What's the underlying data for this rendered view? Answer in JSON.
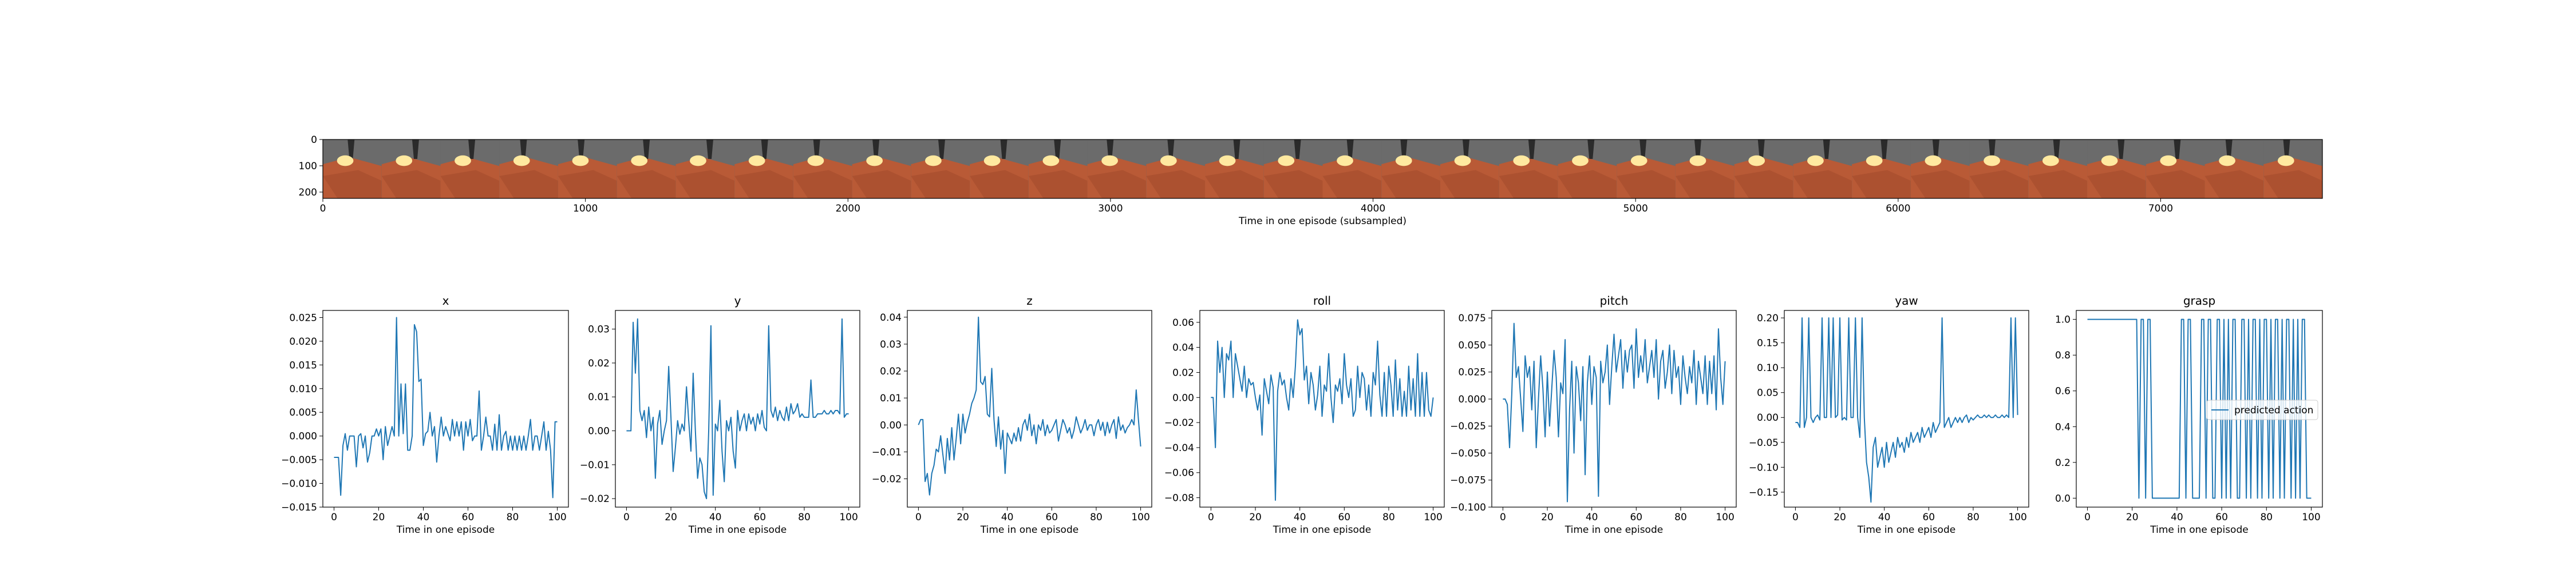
{
  "filmstrip": {
    "xlabel": "Time in one episode (subsampled)",
    "x_ticks": [
      "0",
      "1000",
      "2000",
      "3000",
      "4000",
      "5000",
      "6000",
      "7000"
    ],
    "x_tick_values": [
      0,
      1000,
      2000,
      3000,
      4000,
      5000,
      6000,
      7000
    ],
    "xlim": [
      0,
      7616
    ],
    "y_ticks": [
      "0",
      "100",
      "200"
    ],
    "y_tick_values": [
      0,
      100,
      200
    ],
    "ylim": [
      224,
      0
    ],
    "frame_count": 34,
    "colors": {
      "floor": "#b95a36",
      "wall": "#6b6b6b",
      "light": "#ffe9a0",
      "arm": "#2b2b2b"
    }
  },
  "chart_data": [
    {
      "type": "line",
      "title": "x",
      "xlabel": "Time in one episode",
      "xlim": [
        -5,
        105
      ],
      "ylim": [
        -0.015,
        0.0265
      ],
      "x_ticks": [
        0,
        20,
        40,
        60,
        80,
        100
      ],
      "y_ticks": [
        -0.015,
        -0.01,
        -0.005,
        0.0,
        0.005,
        0.01,
        0.015,
        0.02,
        0.025
      ],
      "y_tick_labels": [
        "−0.015",
        "−0.010",
        "−0.005",
        "0.000",
        "0.005",
        "0.010",
        "0.015",
        "0.020",
        "0.025"
      ],
      "series": [
        {
          "color": "#1f77b4",
          "values": [
            -0.0045,
            -0.0045,
            -0.0045,
            -0.0125,
            -0.002,
            0.0005,
            -0.003,
            0.0,
            0.0,
            0.0,
            -0.0065,
            0.0,
            0.0005,
            -0.0025,
            0.0,
            -0.0055,
            -0.0035,
            0.0,
            0.0,
            0.0015,
            0.0,
            0.0015,
            -0.005,
            0.002,
            -0.002,
            0.0,
            0.002,
            0.0,
            0.025,
            0.0,
            0.011,
            0.0005,
            0.011,
            -0.003,
            -0.003,
            0.0,
            0.0235,
            0.022,
            0.0115,
            0.012,
            -0.002,
            0.0005,
            0.001,
            0.005,
            0.0,
            0.002,
            -0.0055,
            0.0,
            0.004,
            0.0,
            0.002,
            0.0005,
            -0.001,
            0.0035,
            0.0,
            0.003,
            0.0,
            0.003,
            -0.003,
            0.003,
            0.0,
            0.0035,
            -0.001,
            0.0,
            0.0,
            0.0095,
            -0.003,
            0.0,
            0.004,
            0.0,
            0.0,
            -0.003,
            0.0025,
            -0.003,
            0.0045,
            -0.003,
            0.0,
            0.001,
            -0.003,
            0.0,
            -0.003,
            0.0,
            -0.003,
            0.0,
            -0.003,
            0.0,
            -0.003,
            0.0,
            0.0035,
            -0.003,
            0.0,
            0.0,
            -0.003,
            0.0,
            0.003,
            -0.003,
            0.001,
            -0.003,
            -0.013,
            0.003,
            0.003
          ]
        }
      ]
    },
    {
      "type": "line",
      "title": "y",
      "xlabel": "Time in one episode",
      "xlim": [
        -5,
        105
      ],
      "ylim": [
        -0.0225,
        0.0355
      ],
      "x_ticks": [
        0,
        20,
        40,
        60,
        80,
        100
      ],
      "y_ticks": [
        -0.02,
        -0.01,
        0.0,
        0.01,
        0.02,
        0.03
      ],
      "y_tick_labels": [
        "−0.02",
        "−0.01",
        "0.00",
        "0.01",
        "0.02",
        "0.03"
      ],
      "series": [
        {
          "color": "#1f77b4",
          "values": [
            0.0,
            0.0,
            0.0,
            0.032,
            0.017,
            0.033,
            0.006,
            0.003,
            0.006,
            -0.002,
            0.007,
            0.0,
            0.004,
            -0.014,
            0.002,
            0.006,
            -0.004,
            0.0,
            0.003,
            0.019,
            0.004,
            -0.012,
            -0.005,
            0.003,
            -0.001,
            0.002,
            0.0,
            0.013,
            0.003,
            -0.006,
            0.017,
            0.0,
            -0.014,
            -0.008,
            -0.01,
            -0.018,
            -0.02,
            0.0,
            0.031,
            -0.019,
            0.002,
            0.0,
            0.009,
            -0.006,
            -0.015,
            0.003,
            0.0,
            0.004,
            -0.006,
            -0.011,
            0.006,
            0.0,
            0.003,
            0.005,
            0.0,
            0.005,
            0.002,
            0.004,
            0.0,
            0.005,
            0.002,
            0.006,
            0.001,
            0.0,
            0.031,
            0.006,
            0.004,
            0.007,
            0.003,
            0.006,
            0.004,
            0.003,
            0.007,
            0.003,
            0.008,
            0.005,
            0.006,
            0.008,
            0.004,
            0.005,
            0.004,
            0.004,
            0.004,
            0.015,
            0.004,
            0.004,
            0.005,
            0.005,
            0.005,
            0.006,
            0.005,
            0.005,
            0.006,
            0.005,
            0.006,
            0.006,
            0.005,
            0.033,
            0.004,
            0.005,
            0.005
          ]
        }
      ]
    },
    {
      "type": "line",
      "title": "z",
      "xlabel": "Time in one episode",
      "xlim": [
        -5,
        105
      ],
      "ylim": [
        -0.0305,
        0.0425
      ],
      "x_ticks": [
        0,
        20,
        40,
        60,
        80,
        100
      ],
      "y_ticks": [
        -0.02,
        -0.01,
        0.0,
        0.01,
        0.02,
        0.03,
        0.04
      ],
      "y_tick_labels": [
        "−0.02",
        "−0.01",
        "0.00",
        "0.01",
        "0.02",
        "0.03",
        "0.04"
      ],
      "series": [
        {
          "color": "#1f77b4",
          "values": [
            0.0,
            0.002,
            0.002,
            -0.021,
            -0.018,
            -0.026,
            -0.018,
            -0.015,
            -0.009,
            -0.01,
            -0.004,
            -0.011,
            -0.018,
            -0.005,
            -0.013,
            -0.001,
            -0.013,
            -0.005,
            0.004,
            -0.007,
            0.004,
            -0.003,
            0.001,
            0.004,
            0.008,
            0.01,
            0.013,
            0.04,
            0.016,
            0.015,
            0.018,
            0.004,
            0.003,
            0.021,
            0.002,
            -0.008,
            0.003,
            -0.009,
            -0.002,
            -0.018,
            -0.003,
            -0.005,
            -0.007,
            -0.003,
            -0.006,
            -0.001,
            -0.006,
            0.0,
            0.002,
            -0.002,
            0.004,
            -0.004,
            0.0,
            -0.007,
            0.0,
            -0.002,
            0.002,
            -0.004,
            0.0,
            -0.003,
            -0.002,
            0.0,
            0.002,
            -0.006,
            -0.002,
            0.002,
            0.0,
            -0.003,
            -0.001,
            -0.005,
            -0.002,
            0.003,
            0.0,
            -0.003,
            -0.001,
            0.002,
            -0.002,
            0.0,
            0.0,
            -0.004,
            0.0,
            0.002,
            -0.002,
            0.001,
            -0.004,
            0.001,
            -0.003,
            0.0,
            0.002,
            -0.005,
            0.003,
            -0.002,
            0.0,
            -0.003,
            -0.001,
            0.0,
            0.002,
            0.0,
            0.013,
            0.002,
            -0.008
          ]
        }
      ]
    },
    {
      "type": "line",
      "title": "roll",
      "xlabel": "Time in one episode",
      "xlim": [
        -5,
        105
      ],
      "ylim": [
        -0.0875,
        0.0695
      ],
      "x_ticks": [
        0,
        20,
        40,
        60,
        80,
        100
      ],
      "y_ticks": [
        -0.08,
        -0.06,
        -0.04,
        -0.02,
        0.0,
        0.02,
        0.04,
        0.06
      ],
      "y_tick_labels": [
        "−0.08",
        "−0.06",
        "−0.04",
        "−0.02",
        "0.00",
        "0.02",
        "0.04",
        "0.06"
      ],
      "series": [
        {
          "color": "#1f77b4",
          "values": [
            0.0,
            0.0,
            -0.04,
            0.045,
            0.02,
            0.04,
            0.0,
            0.035,
            0.03,
            0.045,
            0.0,
            0.035,
            0.025,
            0.015,
            0.005,
            0.025,
            0.0,
            0.015,
            0.01,
            0.012,
            0.0,
            -0.01,
            0.002,
            -0.03,
            0.015,
            0.005,
            -0.005,
            0.018,
            0.008,
            -0.082,
            0.005,
            0.02,
            0.01,
            0.014,
            0.0,
            -0.01,
            0.015,
            0.0,
            0.025,
            0.062,
            0.05,
            0.055,
            0.014,
            0.025,
            -0.005,
            0.02,
            0.01,
            -0.01,
            0.002,
            0.025,
            -0.015,
            0.01,
            0.005,
            0.035,
            0.0,
            -0.02,
            0.01,
            0.005,
            0.015,
            -0.005,
            0.035,
            0.01,
            0.0,
            0.015,
            -0.015,
            -0.01,
            0.025,
            0.0,
            0.02,
            0.015,
            -0.01,
            0.01,
            -0.015,
            0.02,
            0.01,
            0.045,
            0.002,
            -0.015,
            0.02,
            -0.015,
            0.025,
            0.01,
            -0.015,
            0.03,
            -0.01,
            0.015,
            -0.015,
            0.005,
            -0.015,
            0.025,
            -0.01,
            0.015,
            -0.015,
            0.035,
            -0.015,
            0.02,
            -0.015,
            0.02,
            -0.01,
            -0.015,
            0.0
          ]
        }
      ]
    },
    {
      "type": "line",
      "title": "pitch",
      "xlabel": "Time in one episode",
      "xlim": [
        -5,
        105
      ],
      "ylim": [
        -0.1,
        0.082
      ],
      "x_ticks": [
        0,
        20,
        40,
        60,
        80,
        100
      ],
      "y_ticks": [
        -0.1,
        -0.075,
        -0.05,
        -0.025,
        0.0,
        0.025,
        0.05,
        0.075
      ],
      "y_tick_labels": [
        "−0.100",
        "−0.075",
        "−0.050",
        "−0.025",
        "0.000",
        "0.025",
        "0.050",
        "0.075"
      ],
      "series": [
        {
          "color": "#1f77b4",
          "values": [
            0.0,
            0.0,
            -0.005,
            -0.045,
            0.005,
            0.07,
            0.02,
            0.03,
            0.0,
            -0.03,
            0.04,
            0.02,
            0.03,
            -0.01,
            0.035,
            -0.045,
            0.0,
            0.04,
            0.01,
            -0.035,
            0.025,
            -0.025,
            0.01,
            0.045,
            0.02,
            -0.035,
            0.015,
            0.005,
            0.055,
            -0.095,
            -0.01,
            0.035,
            -0.05,
            0.03,
            0.015,
            -0.02,
            0.03,
            -0.07,
            0.015,
            0.04,
            -0.005,
            0.03,
            0.02,
            -0.09,
            0.035,
            0.015,
            0.025,
            0.05,
            -0.005,
            0.03,
            0.06,
            0.025,
            0.04,
            0.055,
            0.01,
            0.045,
            0.025,
            0.045,
            0.05,
            0.01,
            0.065,
            0.02,
            0.04,
            0.025,
            0.055,
            0.015,
            0.03,
            0.045,
            0.02,
            0.055,
            0.0,
            0.035,
            0.045,
            0.01,
            0.025,
            0.05,
            0.005,
            0.045,
            0.02,
            0.03,
            -0.005,
            0.04,
            0.02,
            0.005,
            0.03,
            0.015,
            0.045,
            -0.005,
            0.035,
            0.02,
            0.005,
            0.04,
            -0.005,
            0.035,
            0.005,
            0.04,
            -0.01,
            0.065,
            0.02,
            -0.005,
            0.035
          ]
        }
      ]
    },
    {
      "type": "line",
      "title": "yaw",
      "xlabel": "Time in one episode",
      "xlim": [
        -5,
        105
      ],
      "ylim": [
        -0.18,
        0.215
      ],
      "x_ticks": [
        0,
        20,
        40,
        60,
        80,
        100
      ],
      "y_ticks": [
        -0.15,
        -0.1,
        -0.05,
        0.0,
        0.05,
        0.1,
        0.15,
        0.2
      ],
      "y_tick_labels": [
        "−0.15",
        "−0.10",
        "−0.05",
        "0.00",
        "0.05",
        "0.10",
        "0.15",
        "0.20"
      ],
      "series": [
        {
          "color": "#1f77b4",
          "values": [
            -0.01,
            -0.01,
            -0.02,
            0.2,
            -0.02,
            0.0,
            0.2,
            0.0,
            -0.01,
            0.0,
            0.005,
            -0.005,
            0.2,
            0.0,
            0.0,
            0.2,
            0.0,
            0.2,
            0.0,
            0.005,
            0.2,
            -0.005,
            0.0,
            -0.005,
            0.2,
            0.0,
            0.0,
            0.2,
            0.0,
            -0.04,
            0.2,
            0.0,
            -0.09,
            -0.12,
            -0.17,
            -0.06,
            -0.04,
            -0.1,
            -0.08,
            -0.06,
            -0.1,
            -0.05,
            -0.09,
            -0.07,
            -0.05,
            -0.08,
            -0.04,
            -0.06,
            -0.05,
            -0.07,
            -0.04,
            -0.06,
            -0.03,
            -0.05,
            -0.04,
            -0.03,
            -0.05,
            -0.02,
            -0.04,
            -0.03,
            -0.02,
            -0.04,
            -0.01,
            -0.03,
            -0.02,
            -0.01,
            0.2,
            -0.02,
            -0.01,
            0.0,
            -0.02,
            -0.01,
            0.0,
            -0.01,
            0.0,
            -0.01,
            0.0,
            0.005,
            -0.01,
            0.0,
            -0.005,
            0.0,
            0.005,
            0.0,
            0.0,
            0.005,
            0.0,
            0.005,
            0.0,
            0.0,
            0.005,
            0.0,
            0.0,
            0.005,
            0.0,
            0.005,
            0.0,
            0.2,
            0.0,
            0.2,
            0.005
          ]
        }
      ]
    },
    {
      "type": "line",
      "title": "grasp",
      "xlabel": "Time in one episode",
      "xlim": [
        -5,
        105
      ],
      "ylim": [
        -0.05,
        1.05
      ],
      "x_ticks": [
        0,
        20,
        40,
        60,
        80,
        100
      ],
      "y_ticks": [
        0.0,
        0.2,
        0.4,
        0.6,
        0.8,
        1.0
      ],
      "y_tick_labels": [
        "0.0",
        "0.2",
        "0.4",
        "0.6",
        "0.8",
        "1.0"
      ],
      "legend": {
        "location": "center-right",
        "entries": [
          "predicted action"
        ]
      },
      "series": [
        {
          "name": "predicted action",
          "color": "#1f77b4",
          "values": [
            1,
            1,
            1,
            1,
            1,
            1,
            1,
            1,
            1,
            1,
            1,
            1,
            1,
            1,
            1,
            1,
            1,
            1,
            1,
            1,
            1,
            1,
            1,
            0,
            1,
            1,
            0,
            1,
            1,
            0,
            0,
            0,
            0,
            0,
            0,
            0,
            0,
            0,
            0,
            0,
            0,
            0,
            1,
            1,
            0,
            1,
            1,
            0,
            0,
            0,
            0,
            1,
            1,
            0,
            1,
            1,
            0,
            0,
            1,
            1,
            0,
            1,
            0,
            1,
            0,
            1,
            1,
            0,
            0,
            1,
            1,
            0,
            1,
            0,
            1,
            1,
            0,
            1,
            0,
            1,
            1,
            0,
            1,
            0,
            1,
            1,
            0,
            1,
            0,
            1,
            1,
            0,
            1,
            0,
            1,
            0,
            1,
            1,
            0,
            0,
            0
          ]
        }
      ]
    }
  ]
}
